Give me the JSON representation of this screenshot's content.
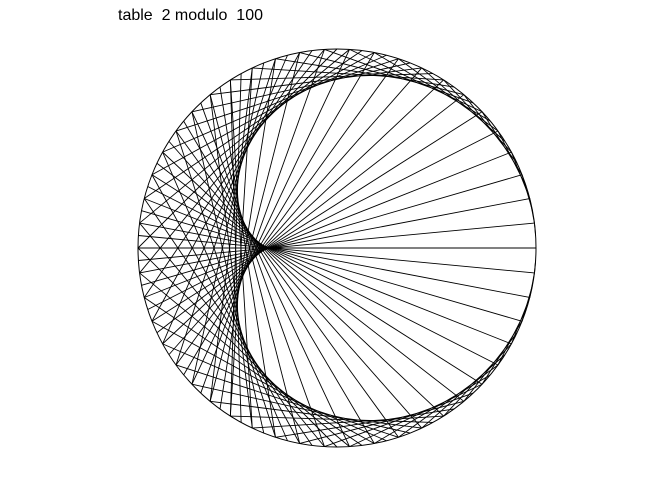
{
  "title": "table  2 modulo  100",
  "diagram": {
    "type": "modular-multiplication-circle",
    "multiplier": 2,
    "modulus": 100,
    "stroke_color": "#000000",
    "background_color": "#ffffff"
  }
}
